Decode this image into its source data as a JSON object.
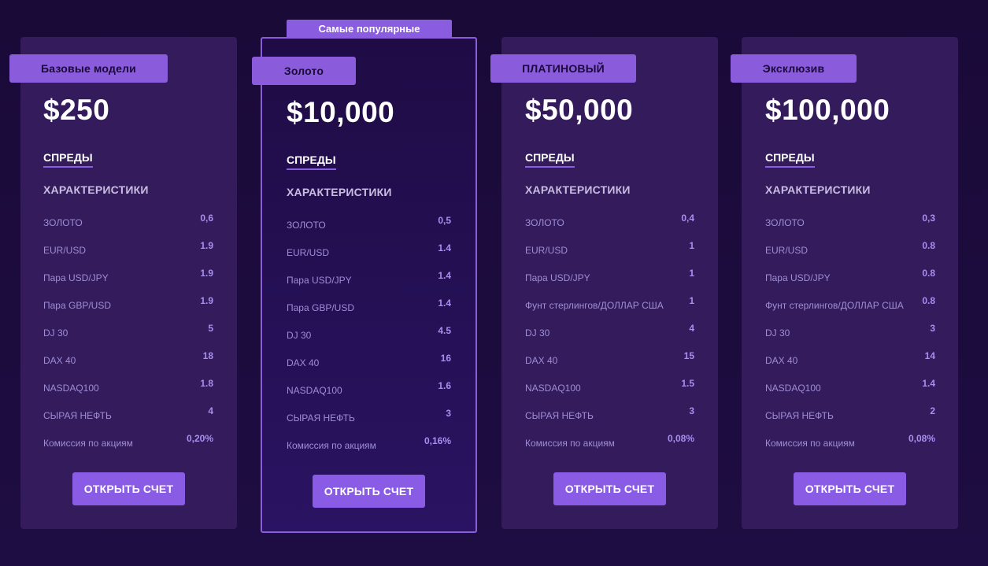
{
  "popular_label": "Самые популярные",
  "spreads_label": "СПРЕДЫ",
  "characteristics_label": "ХАРАКТЕРИСТИКИ",
  "open_account_label": "ОТКРЫТЬ СЧЕТ",
  "plans": [
    {
      "tier": "Базовые модели",
      "price": "$250",
      "rows": [
        {
          "label": "ЗОЛОТО",
          "value": "0,6"
        },
        {
          "label": "EUR/USD",
          "value": "1.9"
        },
        {
          "label": "Пара USD/JPY",
          "value": "1.9"
        },
        {
          "label": "Пара GBP/USD",
          "value": "1.9"
        },
        {
          "label": "DJ 30",
          "value": "5"
        },
        {
          "label": "DAX 40",
          "value": "18"
        },
        {
          "label": "NASDAQ100",
          "value": "1.8"
        },
        {
          "label": "СЫРАЯ НЕФТЬ",
          "value": "4"
        },
        {
          "label": "Комиссия по акциям",
          "value": "0,20%"
        }
      ]
    },
    {
      "tier": "Золото",
      "price": "$10,000",
      "rows": [
        {
          "label": "ЗОЛОТО",
          "value": "0,5"
        },
        {
          "label": "EUR/USD",
          "value": "1.4"
        },
        {
          "label": "Пара USD/JPY",
          "value": "1.4"
        },
        {
          "label": "Пара GBP/USD",
          "value": "1.4"
        },
        {
          "label": "DJ 30",
          "value": "4.5"
        },
        {
          "label": "DAX 40",
          "value": "16"
        },
        {
          "label": "NASDAQ100",
          "value": "1.6"
        },
        {
          "label": "СЫРАЯ НЕФТЬ",
          "value": "3"
        },
        {
          "label": "Комиссия по акциям",
          "value": "0,16%"
        }
      ]
    },
    {
      "tier": "ПЛАТИНОВЫЙ",
      "price": "$50,000",
      "rows": [
        {
          "label": "ЗОЛОТО",
          "value": "0,4"
        },
        {
          "label": "EUR/USD",
          "value": "1"
        },
        {
          "label": "Пара USD/JPY",
          "value": "1"
        },
        {
          "label": "Фунт стерлингов/ДОЛЛАР США",
          "value": "1"
        },
        {
          "label": "DJ 30",
          "value": "4"
        },
        {
          "label": "DAX 40",
          "value": "15"
        },
        {
          "label": "NASDAQ100",
          "value": "1.5"
        },
        {
          "label": "СЫРАЯ НЕФТЬ",
          "value": "3"
        },
        {
          "label": "Комиссия по акциям",
          "value": "0,08%"
        }
      ]
    },
    {
      "tier": "Эксклюзив",
      "price": "$100,000",
      "rows": [
        {
          "label": "ЗОЛОТО",
          "value": "0,3"
        },
        {
          "label": "EUR/USD",
          "value": "0.8"
        },
        {
          "label": "Пара USD/JPY",
          "value": "0.8"
        },
        {
          "label": "Фунт стерлингов/ДОЛЛАР США",
          "value": "0.8"
        },
        {
          "label": "DJ 30",
          "value": "3"
        },
        {
          "label": "DAX 40",
          "value": "14"
        },
        {
          "label": "NASDAQ100",
          "value": "1.4"
        },
        {
          "label": "СЫРАЯ НЕФТЬ",
          "value": "2"
        },
        {
          "label": "Комиссия по акциям",
          "value": "0,08%"
        }
      ]
    }
  ]
}
